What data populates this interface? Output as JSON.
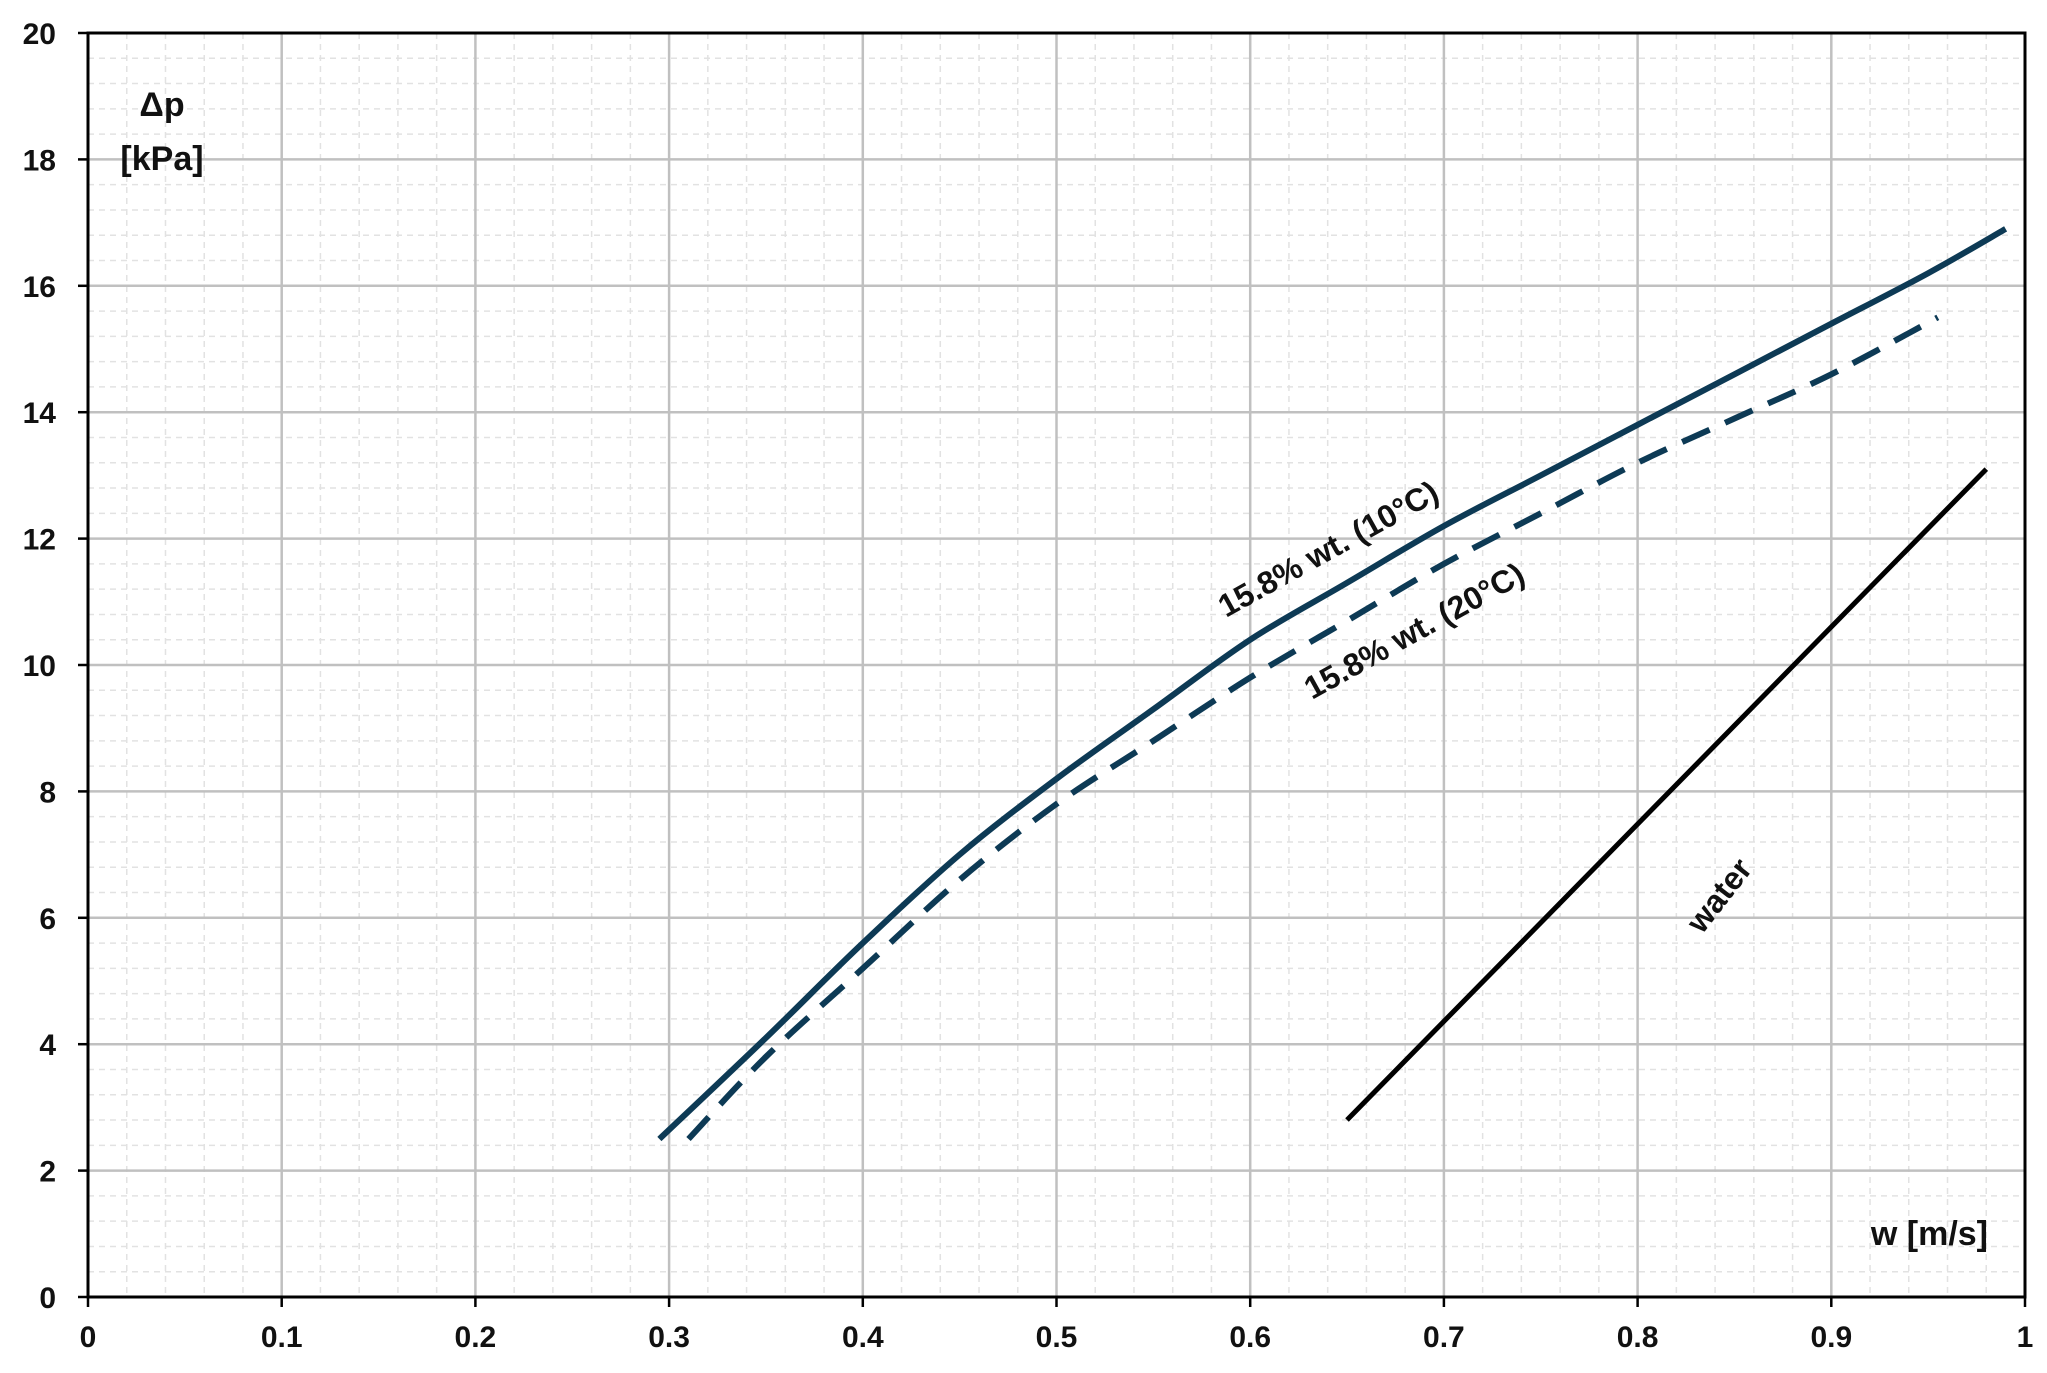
{
  "chart_data": {
    "type": "line",
    "title": "",
    "xlabel": "w [m/s]",
    "ylabel_line1": "Δp",
    "ylabel_line2": "[kPa]",
    "xlim": [
      0,
      1
    ],
    "ylim": [
      0,
      20
    ],
    "x_ticks": [
      "0",
      "0.1",
      "0.2",
      "0.3",
      "0.4",
      "0.5",
      "0.6",
      "0.7",
      "0.8",
      "0.9",
      "1"
    ],
    "y_ticks": [
      "0",
      "2",
      "4",
      "6",
      "8",
      "10",
      "12",
      "14",
      "16",
      "18",
      "20"
    ],
    "grid": true,
    "series": [
      {
        "name": "15.8% wt. (10°C)",
        "color": "#0d3a55",
        "style": "solid",
        "x": [
          0.295,
          0.35,
          0.4,
          0.45,
          0.5,
          0.55,
          0.6,
          0.65,
          0.7,
          0.75,
          0.8,
          0.85,
          0.9,
          0.95,
          0.99
        ],
        "y": [
          2.5,
          4.1,
          5.6,
          7.0,
          8.2,
          9.3,
          10.4,
          11.3,
          12.2,
          13.0,
          13.8,
          14.6,
          15.4,
          16.2,
          16.9
        ]
      },
      {
        "name": "15.8% wt. (20°C)",
        "color": "#0d3a55",
        "style": "dashed",
        "x": [
          0.31,
          0.35,
          0.4,
          0.45,
          0.5,
          0.55,
          0.6,
          0.65,
          0.7,
          0.75,
          0.8,
          0.85,
          0.9,
          0.955
        ],
        "y": [
          2.5,
          3.8,
          5.2,
          6.6,
          7.8,
          8.8,
          9.8,
          10.7,
          11.6,
          12.4,
          13.2,
          13.9,
          14.6,
          15.5
        ]
      },
      {
        "name": "water",
        "color": "#000000",
        "style": "solid",
        "x": [
          0.65,
          0.98
        ],
        "y": [
          2.8,
          13.1
        ]
      }
    ]
  }
}
